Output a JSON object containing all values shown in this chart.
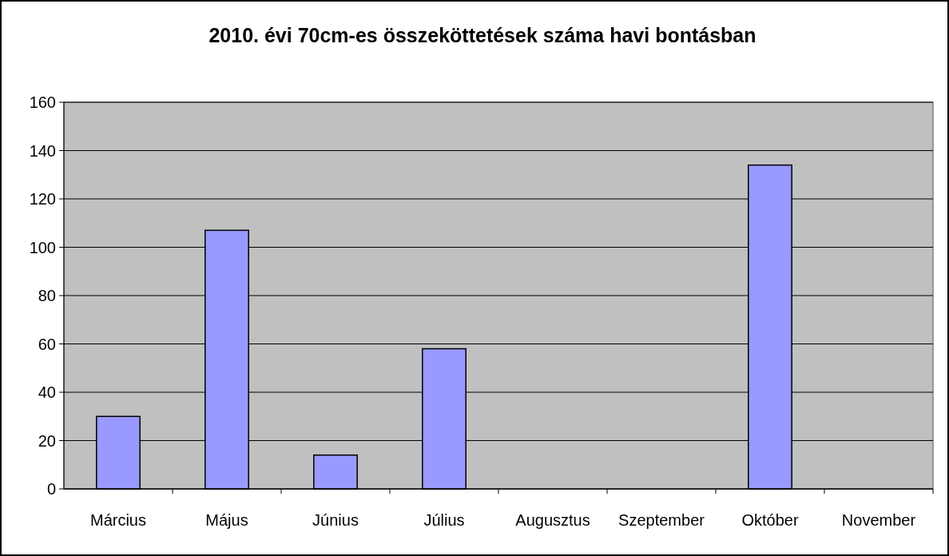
{
  "chart_data": {
    "type": "bar",
    "title": "2010. évi 70cm-es összeköttetések száma havi bontásban",
    "categories": [
      "Március",
      "Május",
      "Június",
      "Július",
      "Augusztus",
      "Szeptember",
      "Október",
      "November"
    ],
    "values": [
      30,
      107,
      14,
      58,
      0,
      0,
      134,
      0
    ],
    "color": "#9999ff",
    "ylim": [
      0,
      160
    ],
    "yticks": [
      0,
      20,
      40,
      60,
      80,
      100,
      120,
      140,
      160
    ],
    "grid": "y"
  }
}
